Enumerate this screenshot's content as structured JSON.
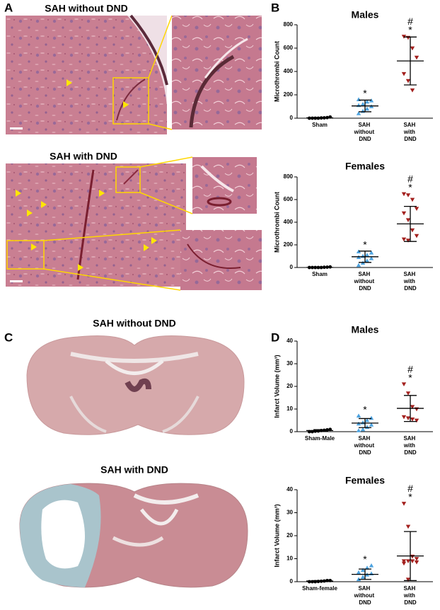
{
  "panels": {
    "a": {
      "label": "A",
      "top_caption": "SAH without DND",
      "bottom_caption": "SAH with DND"
    },
    "b": {
      "label": "B"
    },
    "c": {
      "label": "C",
      "top_caption": "SAH without DND",
      "bottom_caption": "SAH with DND"
    },
    "d": {
      "label": "D"
    }
  },
  "chart_data": [
    {
      "type": "dot",
      "title": "Males",
      "ylabel": "Microthrombi Count",
      "categories": [
        "Sham",
        "SAH without DND",
        "SAH with DND"
      ],
      "ylim": [
        0,
        800
      ],
      "yticks": [
        0,
        200,
        400,
        600,
        800
      ],
      "groups": [
        {
          "color": "#000000",
          "marker": "circle",
          "values": [
            0,
            0,
            0,
            0,
            2,
            3,
            5,
            10
          ],
          "mean": 3,
          "error": [
            0,
            6
          ]
        },
        {
          "color": "#4da3e0",
          "marker": "triangle-up",
          "values": [
            40,
            60,
            80,
            100,
            110,
            120,
            140,
            150,
            160
          ],
          "mean": 105,
          "error": [
            55,
            155
          ],
          "annotation": [
            "*"
          ]
        },
        {
          "color": "#a3201e",
          "marker": "triangle-down",
          "values": [
            700,
            690,
            600,
            520,
            380,
            320,
            240
          ],
          "mean": 490,
          "error": [
            285,
            695
          ],
          "annotation": [
            "#",
            "*"
          ]
        }
      ]
    },
    {
      "type": "dot",
      "title": "Females",
      "ylabel": "Microthrombi Count",
      "categories": [
        "Sham",
        "SAH without DND",
        "SAH with DND"
      ],
      "ylim": [
        0,
        800
      ],
      "yticks": [
        0,
        200,
        400,
        600,
        800
      ],
      "groups": [
        {
          "color": "#000000",
          "marker": "circle",
          "values": [
            0,
            0,
            0,
            0,
            0,
            2,
            3,
            5
          ],
          "mean": 1,
          "error": [
            0,
            3
          ]
        },
        {
          "color": "#4da3e0",
          "marker": "triangle-up",
          "values": [
            20,
            40,
            60,
            80,
            90,
            100,
            110,
            130,
            140
          ],
          "mean": 95,
          "error": [
            45,
            145
          ],
          "annotation": [
            "*"
          ]
        },
        {
          "color": "#a3201e",
          "marker": "triangle-down",
          "values": [
            650,
            640,
            600,
            520,
            480,
            420,
            330,
            280,
            250,
            240
          ],
          "mean": 385,
          "error": [
            230,
            540
          ],
          "annotation": [
            "#",
            "*"
          ]
        }
      ]
    },
    {
      "type": "dot",
      "title": "Males",
      "ylabel": "Infarct Volume (mm³)",
      "categories": [
        "Sham-Male",
        "SAH without DND",
        "SAH with DND"
      ],
      "ylim": [
        0,
        40
      ],
      "yticks": [
        0,
        10,
        20,
        30,
        40
      ],
      "groups": [
        {
          "color": "#000000",
          "marker": "circle",
          "values": [
            0,
            0,
            0.2,
            0.3,
            0.5,
            0.6,
            0.8,
            1
          ],
          "mean": 0.5,
          "error": [
            0.1,
            0.9
          ]
        },
        {
          "color": "#4da3e0",
          "marker": "triangle-up",
          "values": [
            0.5,
            1,
            2,
            3,
            3.5,
            4,
            5,
            6,
            7
          ],
          "mean": 3.8,
          "error": [
            1.8,
            5.8
          ],
          "annotation": [
            "*"
          ]
        },
        {
          "color": "#a3201e",
          "marker": "triangle-down",
          "values": [
            21,
            17,
            11,
            10,
            6.5,
            6,
            5.5,
            5
          ],
          "mean": 10.3,
          "error": [
            4.5,
            16
          ],
          "annotation": [
            "#",
            "*"
          ]
        }
      ]
    },
    {
      "type": "dot",
      "title": "Females",
      "ylabel": "Infarct Volume (mm³)",
      "categories": [
        "Sham-female",
        "SAH without DND",
        "SAH with DND"
      ],
      "ylim": [
        0,
        40
      ],
      "yticks": [
        0,
        10,
        20,
        30,
        40
      ],
      "groups": [
        {
          "color": "#000000",
          "marker": "circle",
          "values": [
            0,
            0,
            0,
            0.1,
            0.2,
            0.3,
            0.5,
            0.5
          ],
          "mean": 0.3,
          "error": [
            0,
            0.5
          ]
        },
        {
          "color": "#4da3e0",
          "marker": "triangle-up",
          "values": [
            1,
            2,
            3,
            3.5,
            4,
            5,
            6,
            7
          ],
          "mean": 3.2,
          "error": [
            1,
            5.5
          ],
          "annotation": [
            "*"
          ]
        },
        {
          "color": "#a3201e",
          "marker": "triangle-down",
          "values": [
            34,
            24,
            11,
            10,
            9,
            9,
            9,
            8.5,
            8,
            1
          ],
          "mean": 11.2,
          "error": [
            0.5,
            21.8
          ],
          "annotation": [
            "#",
            "*"
          ]
        }
      ]
    }
  ]
}
